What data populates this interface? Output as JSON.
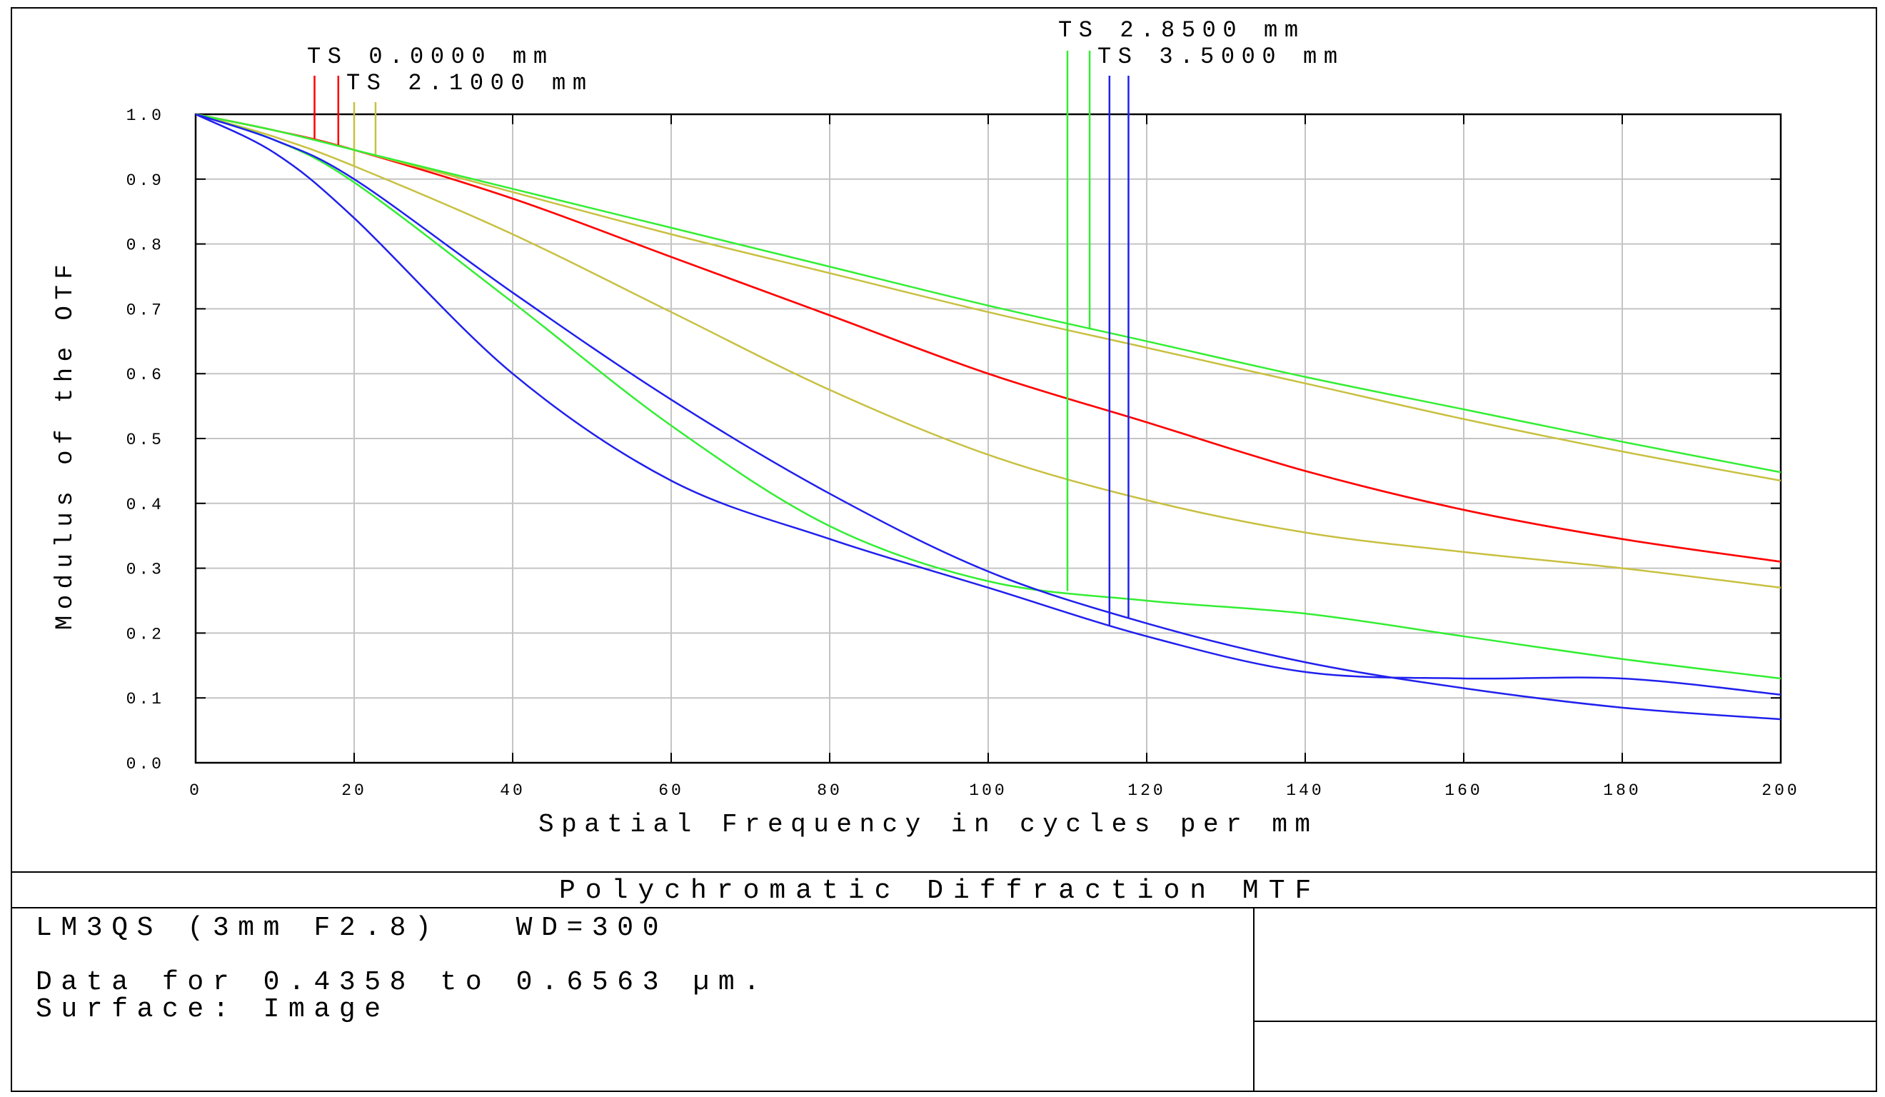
{
  "chart_data": {
    "type": "line",
    "title": "Polychromatic Diffraction MTF",
    "xlabel": "Spatial Frequency in cycles per mm",
    "ylabel": "Modulus of the OTF",
    "xlim": [
      0,
      200
    ],
    "ylim": [
      0,
      1.0
    ],
    "grid": true,
    "x_ticks": [
      "0",
      "20",
      "40",
      "60",
      "80",
      "100",
      "120",
      "140",
      "160",
      "180",
      "200"
    ],
    "y_ticks": [
      "0.0",
      "0.1",
      "0.2",
      "0.3",
      "0.4",
      "0.5",
      "0.6",
      "0.7",
      "0.8",
      "0.9",
      "1.0"
    ],
    "legend_placement": "top",
    "x": [
      0,
      10,
      20,
      40,
      60,
      80,
      100,
      120,
      140,
      160,
      180,
      200
    ],
    "series": [
      {
        "name": "TS 0.0000 mm",
        "color": "#ff0000",
        "curves": [
          [
            1,
            0.975,
            0.945,
            0.87,
            0.78,
            0.69,
            0.6,
            0.525,
            0.45,
            0.39,
            0.345,
            0.31
          ],
          [
            1,
            0.975,
            0.945,
            0.87,
            0.78,
            0.69,
            0.6,
            0.525,
            0.45,
            0.39,
            0.345,
            0.31
          ]
        ]
      },
      {
        "name": "TS 2.1000 mm",
        "color": "#c8c040",
        "curves": [
          [
            1,
            0.975,
            0.945,
            0.88,
            0.815,
            0.755,
            0.695,
            0.64,
            0.585,
            0.53,
            0.48,
            0.435
          ],
          [
            1,
            0.965,
            0.92,
            0.815,
            0.695,
            0.575,
            0.475,
            0.405,
            0.355,
            0.325,
            0.3,
            0.27
          ]
        ]
      },
      {
        "name": "TS 2.8500 mm",
        "color": "#33ee33",
        "curves": [
          [
            1,
            0.975,
            0.945,
            0.885,
            0.825,
            0.765,
            0.705,
            0.65,
            0.595,
            0.545,
            0.495,
            0.448
          ],
          [
            1,
            0.96,
            0.895,
            0.71,
            0.52,
            0.365,
            0.28,
            0.25,
            0.23,
            0.195,
            0.16,
            0.13
          ]
        ]
      },
      {
        "name": "TS 3.5000 mm",
        "color": "#2020ee",
        "curves": [
          [
            1,
            0.96,
            0.9,
            0.725,
            0.56,
            0.415,
            0.295,
            0.215,
            0.155,
            0.115,
            0.085,
            0.067
          ],
          [
            1,
            0.94,
            0.84,
            0.6,
            0.435,
            0.345,
            0.27,
            0.195,
            0.14,
            0.13,
            0.13,
            0.105
          ]
        ]
      }
    ]
  },
  "footer": {
    "title": "Polychromatic Diffraction MTF",
    "line1": "LM3QS (3mm F2.8)   WD=300",
    "line2": "Data for 0.4358 to 0.6563 µm.",
    "line3": "Surface: Image"
  }
}
